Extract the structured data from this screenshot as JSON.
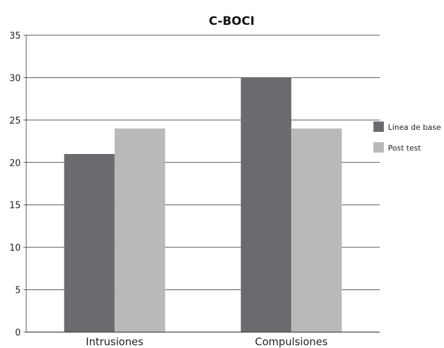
{
  "chart_data": {
    "type": "bar",
    "title": "C-BOCI",
    "xlabel": "",
    "ylabel": "",
    "categories": [
      "Intrusiones",
      "Compulsiones"
    ],
    "series": [
      {
        "name": "Línea de base",
        "values": [
          21,
          30
        ],
        "color": "#6b6b6f"
      },
      {
        "name": "Post test",
        "values": [
          24,
          24
        ],
        "color": "#b9b9bc"
      }
    ],
    "ylim": [
      0,
      35
    ],
    "yticks": [
      0,
      5,
      10,
      15,
      20,
      25,
      30,
      35
    ],
    "grid": true,
    "legend": "right"
  }
}
